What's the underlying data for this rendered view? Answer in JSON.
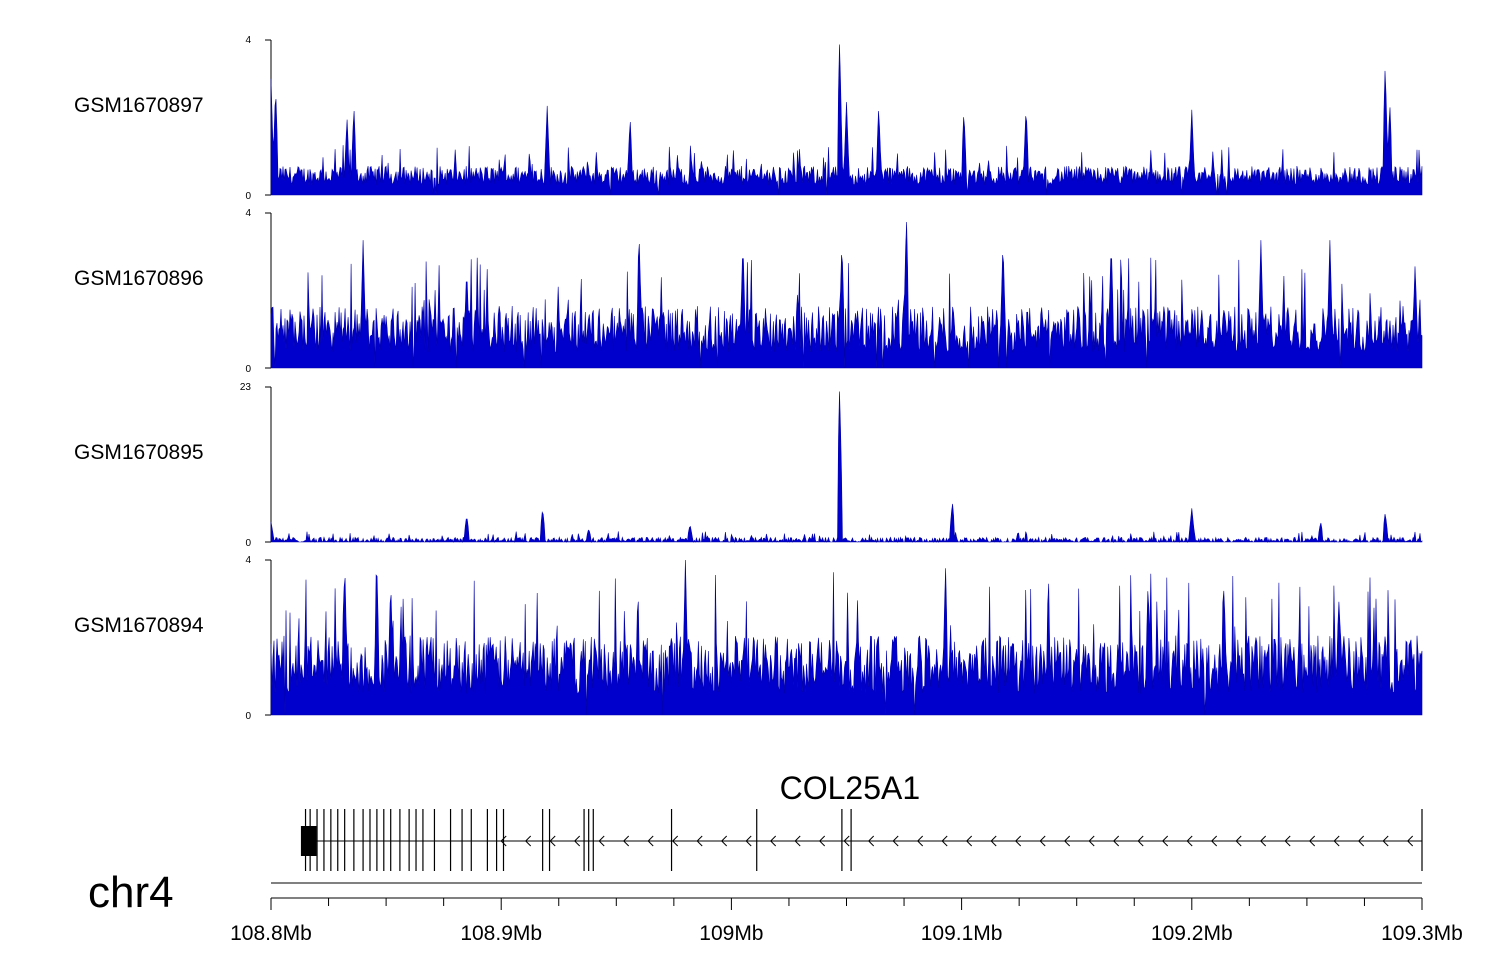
{
  "chart_data": {
    "type": "area",
    "chromosome": "chr4",
    "x_range_mb": [
      108.8,
      109.3
    ],
    "x_ticks": [
      "108.8Mb",
      "108.9Mb",
      "109Mb",
      "109.1Mb",
      "109.2Mb",
      "109.3Mb"
    ],
    "x_tick_values": [
      108.8,
      108.9,
      109.0,
      109.1,
      109.2,
      109.3
    ],
    "series_color": "#0000cc",
    "tracks": [
      {
        "name": "GSM1670897",
        "ylim": [
          0,
          4
        ],
        "y_tick_labels": [
          "0",
          "4"
        ],
        "baseline": 0.5,
        "noise": 0.25,
        "peaks": [
          {
            "x": 108.8,
            "y": 3.0
          },
          {
            "x": 108.802,
            "y": 2.8
          },
          {
            "x": 108.833,
            "y": 2.0
          },
          {
            "x": 108.836,
            "y": 2.3
          },
          {
            "x": 108.92,
            "y": 2.3
          },
          {
            "x": 108.956,
            "y": 2.0
          },
          {
            "x": 109.047,
            "y": 4.0
          },
          {
            "x": 109.05,
            "y": 2.4
          },
          {
            "x": 109.064,
            "y": 2.3
          },
          {
            "x": 109.101,
            "y": 2.2
          },
          {
            "x": 109.128,
            "y": 2.3
          },
          {
            "x": 109.2,
            "y": 2.2
          },
          {
            "x": 109.284,
            "y": 3.4
          },
          {
            "x": 109.286,
            "y": 2.4
          }
        ]
      },
      {
        "name": "GSM1670896",
        "ylim": [
          0,
          4
        ],
        "y_tick_labels": [
          "0",
          "4"
        ],
        "baseline": 1.0,
        "noise": 0.6,
        "peaks": [
          {
            "x": 108.84,
            "y": 3.3
          },
          {
            "x": 108.885,
            "y": 2.6
          },
          {
            "x": 108.96,
            "y": 3.2
          },
          {
            "x": 109.005,
            "y": 3.3
          },
          {
            "x": 109.048,
            "y": 3.3
          },
          {
            "x": 109.076,
            "y": 4.0
          },
          {
            "x": 109.118,
            "y": 3.3
          },
          {
            "x": 109.165,
            "y": 3.3
          },
          {
            "x": 109.23,
            "y": 3.3
          },
          {
            "x": 109.26,
            "y": 3.3
          },
          {
            "x": 109.297,
            "y": 2.7
          }
        ]
      },
      {
        "name": "GSM1670895",
        "ylim": [
          0,
          23
        ],
        "y_tick_labels": [
          "0",
          "23"
        ],
        "baseline": 0.3,
        "noise": 0.4,
        "peaks": [
          {
            "x": 108.8,
            "y": 3.0
          },
          {
            "x": 108.885,
            "y": 4.0
          },
          {
            "x": 108.918,
            "y": 5.0
          },
          {
            "x": 108.938,
            "y": 2.0
          },
          {
            "x": 108.982,
            "y": 2.6
          },
          {
            "x": 109.047,
            "y": 23.0
          },
          {
            "x": 109.096,
            "y": 6.0
          },
          {
            "x": 109.2,
            "y": 5.0
          },
          {
            "x": 109.256,
            "y": 3.0
          },
          {
            "x": 109.284,
            "y": 4.4
          }
        ]
      },
      {
        "name": "GSM1670894",
        "ylim": [
          0,
          4
        ],
        "y_tick_labels": [
          "0",
          "4"
        ],
        "baseline": 1.3,
        "noise": 0.75,
        "peaks": [
          {
            "x": 108.832,
            "y": 4.0
          },
          {
            "x": 108.846,
            "y": 3.8
          },
          {
            "x": 108.852,
            "y": 3.5
          },
          {
            "x": 108.98,
            "y": 4.0
          },
          {
            "x": 109.093,
            "y": 3.9
          },
          {
            "x": 109.181,
            "y": 3.5
          },
          {
            "x": 109.214,
            "y": 3.4
          },
          {
            "x": 109.264,
            "y": 3.1
          }
        ]
      }
    ]
  },
  "gene": {
    "name": "COL25A1",
    "strand": "-",
    "start_mb": 108.815,
    "end_mb": 109.3,
    "exons_mb": [
      108.815,
      108.817,
      108.82,
      108.823,
      108.826,
      108.829,
      108.832,
      108.836,
      108.84,
      108.843,
      108.846,
      108.849,
      108.852,
      108.856,
      108.86,
      108.863,
      108.866,
      108.871,
      108.878,
      108.883,
      108.887,
      108.894,
      108.898,
      108.901,
      108.918,
      108.921,
      108.936,
      108.938,
      108.94,
      108.974,
      109.011,
      109.048,
      109.052,
      109.3
    ],
    "first_block_mb": [
      108.813,
      108.818
    ]
  },
  "chromosome_label": "chr4"
}
